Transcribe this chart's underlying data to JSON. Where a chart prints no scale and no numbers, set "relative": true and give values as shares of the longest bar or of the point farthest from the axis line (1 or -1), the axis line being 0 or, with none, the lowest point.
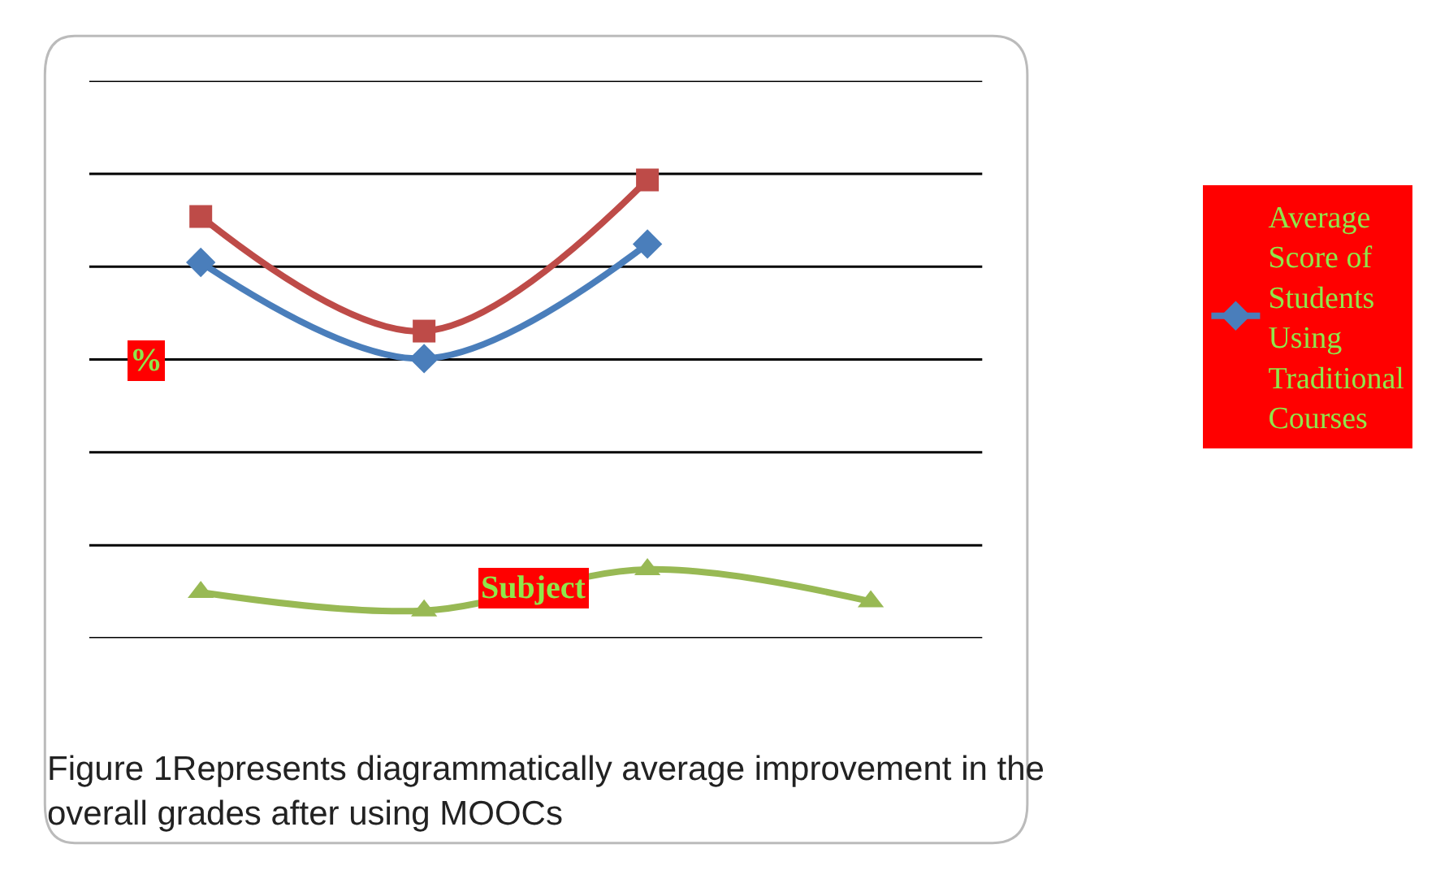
{
  "chart_data": {
    "type": "line",
    "relative": true,
    "categories": [
      null,
      null,
      null,
      null
    ],
    "xlabel": "Subject",
    "ylabel": "%",
    "annotations": [
      "Figure 1Represents diagrammatically average improvement in the overall grades after using MOOCs"
    ],
    "grid": "y",
    "legend": "right",
    "line_style": "solid",
    "series": [
      {
        "name": "Average Score of Students Using Traditional Courses",
        "color": "#4a7ebb",
        "marker": "diamond",
        "values": [
          0.82,
          0.61,
          0.86,
          null
        ]
      },
      {
        "color": "#be4b48",
        "marker": "square",
        "values": [
          0.92,
          0.67,
          1,
          null
        ]
      },
      {
        "color": "#98b954",
        "marker": "triangle",
        "values": [
          0.1,
          0.06,
          0.15,
          0.08
        ]
      }
    ]
  }
}
